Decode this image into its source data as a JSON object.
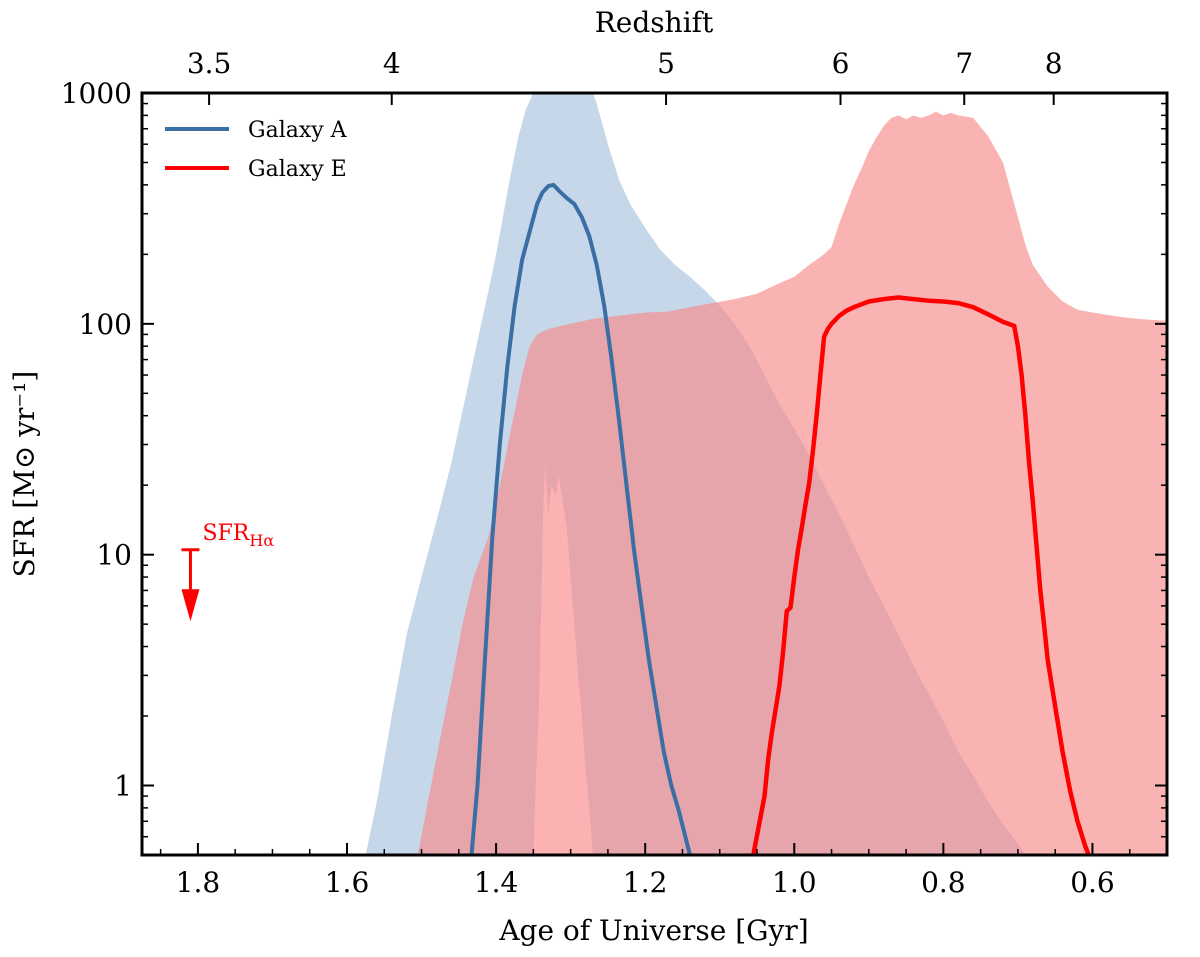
{
  "chart_data": {
    "type": "line",
    "title": "",
    "xlabel": "Age of Universe [Gyr]",
    "ylabel": "SFR [M⊙ yr⁻¹]",
    "top_axis_label": "Redshift",
    "xlim": [
      1.875,
      0.5
    ],
    "ylim": [
      0.5,
      1000
    ],
    "yscale": "log",
    "x_ticks": [
      1.8,
      1.6,
      1.4,
      1.2,
      1.0,
      0.8,
      0.6
    ],
    "x_tick_labels": [
      "1.8",
      "1.6",
      "1.4",
      "1.2",
      "1.0",
      "0.8",
      "0.6"
    ],
    "y_ticks": [
      1,
      10,
      100,
      1000
    ],
    "y_tick_labels": [
      "1",
      "10",
      "100",
      "1000"
    ],
    "top_ticks": [
      {
        "label": "3.5",
        "age": 1.785
      },
      {
        "label": "4",
        "age": 1.54
      },
      {
        "label": "5",
        "age": 1.172
      },
      {
        "label": "6",
        "age": 0.938
      },
      {
        "label": "7",
        "age": 0.772
      },
      {
        "label": "8",
        "age": 0.652
      }
    ],
    "legend": {
      "position": "top-left",
      "entries": [
        "Galaxy A",
        "Galaxy E"
      ]
    },
    "series": [
      {
        "name": "Galaxy A",
        "color": "#3a6fa5",
        "fill_color": "#9fbcd8",
        "x": [
          1.433,
          1.425,
          1.415,
          1.405,
          1.395,
          1.385,
          1.375,
          1.365,
          1.355,
          1.345,
          1.338,
          1.33,
          1.323,
          1.315,
          1.305,
          1.295,
          1.285,
          1.275,
          1.265,
          1.255,
          1.245,
          1.235,
          1.225,
          1.215,
          1.205,
          1.195,
          1.185,
          1.175,
          1.165,
          1.155,
          1.145,
          1.14
        ],
        "values": [
          0.5,
          1.0,
          3.5,
          12,
          30,
          65,
          120,
          190,
          250,
          330,
          370,
          395,
          400,
          375,
          350,
          330,
          290,
          240,
          180,
          120,
          70,
          38,
          20,
          10.5,
          6,
          3.5,
          2.2,
          1.4,
          1.0,
          0.78,
          0.58,
          0.5
        ],
        "band_upper": [
          [
            1.575,
            0.5
          ],
          [
            1.56,
            0.85
          ],
          [
            1.55,
            1.3
          ],
          [
            1.54,
            2.0
          ],
          [
            1.53,
            3.0
          ],
          [
            1.52,
            4.5
          ],
          [
            1.5,
            8
          ],
          [
            1.48,
            14
          ],
          [
            1.46,
            25
          ],
          [
            1.44,
            50
          ],
          [
            1.42,
            100
          ],
          [
            1.41,
            140
          ],
          [
            1.4,
            200
          ],
          [
            1.39,
            300
          ],
          [
            1.38,
            450
          ],
          [
            1.37,
            650
          ],
          [
            1.36,
            850
          ],
          [
            1.35,
            1000
          ],
          [
            1.3,
            1000
          ],
          [
            1.27,
            1000
          ],
          [
            1.265,
            900
          ],
          [
            1.25,
            600
          ],
          [
            1.235,
            420
          ],
          [
            1.22,
            330
          ],
          [
            1.2,
            260
          ],
          [
            1.18,
            210
          ],
          [
            1.16,
            180
          ],
          [
            1.14,
            160
          ],
          [
            1.12,
            140
          ],
          [
            1.1,
            120
          ],
          [
            1.08,
            100
          ],
          [
            1.06,
            80
          ],
          [
            1.04,
            60
          ],
          [
            1.02,
            45
          ],
          [
            1.0,
            35
          ],
          [
            0.98,
            27
          ],
          [
            0.96,
            20
          ],
          [
            0.94,
            15
          ],
          [
            0.92,
            11
          ],
          [
            0.9,
            8
          ],
          [
            0.88,
            6
          ],
          [
            0.86,
            4.5
          ],
          [
            0.84,
            3.3
          ],
          [
            0.82,
            2.5
          ],
          [
            0.8,
            1.9
          ],
          [
            0.78,
            1.4
          ],
          [
            0.76,
            1.1
          ],
          [
            0.74,
            0.85
          ],
          [
            0.72,
            0.68
          ],
          [
            0.7,
            0.56
          ],
          [
            0.69,
            0.5
          ]
        ]
      },
      {
        "name": "Galaxy E",
        "color": "#ff0000",
        "fill_color": "#f88a8a",
        "x": [
          1.055,
          1.04,
          1.035,
          1.03,
          1.02,
          1.015,
          1.01,
          1.005,
          1.0,
          0.995,
          0.99,
          0.985,
          0.98,
          0.975,
          0.97,
          0.965,
          0.96,
          0.955,
          0.95,
          0.94,
          0.93,
          0.92,
          0.9,
          0.88,
          0.86,
          0.84,
          0.82,
          0.8,
          0.78,
          0.76,
          0.74,
          0.72,
          0.705,
          0.7,
          0.695,
          0.69,
          0.685,
          0.68,
          0.675,
          0.67,
          0.665,
          0.66,
          0.65,
          0.64,
          0.63,
          0.62,
          0.61,
          0.605
        ],
        "values": [
          0.5,
          0.9,
          1.3,
          1.7,
          2.7,
          3.8,
          5.7,
          5.9,
          8,
          10.5,
          13,
          16.5,
          20.5,
          28,
          40,
          60,
          88,
          95,
          100,
          108,
          114,
          118,
          125,
          128,
          130,
          128,
          126,
          125,
          123,
          118,
          110,
          102,
          98,
          80,
          60,
          40,
          25,
          17,
          11,
          7,
          5,
          3.5,
          2.2,
          1.4,
          0.95,
          0.7,
          0.55,
          0.5
        ],
        "band_upper": [
          [
            1.505,
            0.5
          ],
          [
            1.49,
            0.9
          ],
          [
            1.475,
            1.6
          ],
          [
            1.46,
            2.8
          ],
          [
            1.445,
            5
          ],
          [
            1.43,
            8
          ],
          [
            1.41,
            12
          ],
          [
            1.395,
            20
          ],
          [
            1.38,
            35
          ],
          [
            1.365,
            60
          ],
          [
            1.355,
            80
          ],
          [
            1.345,
            90
          ],
          [
            1.33,
            95
          ],
          [
            1.3,
            100
          ],
          [
            1.27,
            105
          ],
          [
            1.24,
            108
          ],
          [
            1.2,
            112
          ],
          [
            1.17,
            113
          ],
          [
            1.14,
            118
          ],
          [
            1.11,
            123
          ],
          [
            1.08,
            128
          ],
          [
            1.05,
            135
          ],
          [
            1.02,
            150
          ],
          [
            1.0,
            160
          ],
          [
            0.98,
            180
          ],
          [
            0.96,
            200
          ],
          [
            0.95,
            215
          ],
          [
            0.94,
            270
          ],
          [
            0.93,
            330
          ],
          [
            0.92,
            400
          ],
          [
            0.91,
            470
          ],
          [
            0.9,
            560
          ],
          [
            0.89,
            640
          ],
          [
            0.88,
            720
          ],
          [
            0.87,
            780
          ],
          [
            0.86,
            800
          ],
          [
            0.85,
            770
          ],
          [
            0.84,
            800
          ],
          [
            0.83,
            780
          ],
          [
            0.82,
            800
          ],
          [
            0.81,
            830
          ],
          [
            0.8,
            800
          ],
          [
            0.79,
            820
          ],
          [
            0.78,
            800
          ],
          [
            0.76,
            780
          ],
          [
            0.74,
            650
          ],
          [
            0.72,
            500
          ],
          [
            0.71,
            380
          ],
          [
            0.7,
            290
          ],
          [
            0.69,
            220
          ],
          [
            0.68,
            180
          ],
          [
            0.66,
            145
          ],
          [
            0.64,
            125
          ],
          [
            0.62,
            115
          ],
          [
            0.6,
            112
          ],
          [
            0.57,
            108
          ],
          [
            0.54,
            105
          ],
          [
            0.5,
            103
          ]
        ],
        "band_lower_left_region": [
          [
            1.35,
            0.5
          ],
          [
            1.347,
            1
          ],
          [
            1.343,
            2
          ],
          [
            1.34,
            5
          ],
          [
            1.337,
            15
          ],
          [
            1.334,
            25
          ],
          [
            1.33,
            15
          ],
          [
            1.326,
            20
          ],
          [
            1.32,
            18
          ],
          [
            1.316,
            22
          ],
          [
            1.312,
            18
          ],
          [
            1.305,
            13
          ],
          [
            1.3,
            8
          ],
          [
            1.295,
            5
          ],
          [
            1.29,
            3
          ],
          [
            1.285,
            2
          ],
          [
            1.28,
            1.2
          ],
          [
            1.275,
            0.8
          ],
          [
            1.27,
            0.5
          ]
        ]
      }
    ],
    "annotations": [
      {
        "text": "SFR",
        "subscript": "Hα",
        "type": "upper_limit_arrow",
        "color": "#ff0000",
        "x": 1.81,
        "y": 10.5,
        "arrow_to_y": 5.8
      }
    ]
  }
}
